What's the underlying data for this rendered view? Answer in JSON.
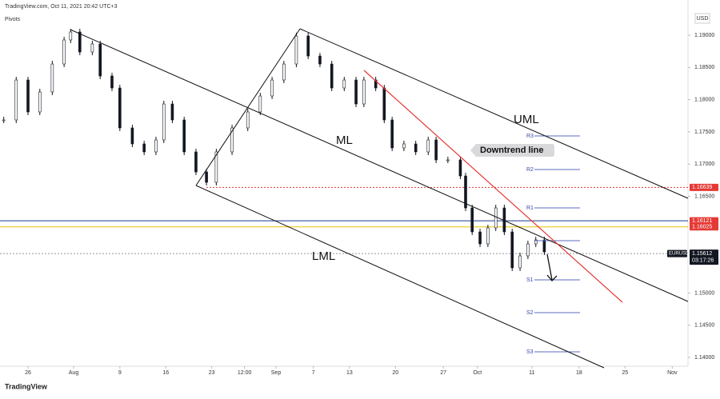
{
  "chart_data": {
    "type": "candlestick",
    "title": "TradingView.com, Oct 11, 2021 20:42 UTC+3",
    "subtitle": "Pivots",
    "currency": "USD",
    "symbol": "EURUSD",
    "countdown": "03:17:26",
    "brand": "TradingView",
    "annotations": [
      "UML",
      "ML",
      "LML",
      "Downtrend line"
    ],
    "x": [
      -3.7,
      -1.8,
      0,
      1.8,
      3.7,
      5.5,
      6.5,
      7.9,
      9.8,
      11,
      12.8,
      14,
      15.9,
      17.7,
      19.5,
      20.7,
      22,
      23.8,
      25.6,
      27.2,
      28.7,
      31.1,
      33.5,
      35.4,
      37.2,
      39,
      40.9,
      42.7,
      44.5,
      46.3,
      48.2,
      50,
      51.2,
      53,
      54.3,
      55.5,
      57.3,
      59.1,
      61,
      62.2,
      64,
      65.9,
      66.7,
      67.7,
      68.9,
      70.1,
      71.3,
      72.6,
      73.8,
      75,
      76.2,
      77.4,
      78.7
    ],
    "values": [
      1.17685,
      1.18305,
      1.17809,
      1.18119,
      1.18553,
      1.18926,
      1.1905,
      1.18739,
      1.18864,
      1.18367,
      1.18181,
      1.17561,
      1.17313,
      1.17189,
      1.17375,
      1.17933,
      1.17685,
      1.17189,
      1.16878,
      1.16717,
      1.17189,
      1.17561,
      1.17809,
      1.18057,
      1.18305,
      1.18553,
      1.18988,
      1.18677,
      1.18553,
      1.18181,
      1.18305,
      1.17933,
      1.18305,
      1.18181,
      1.17685,
      1.17251,
      1.17313,
      1.17189,
      1.17375,
      1.17065,
      1.17065,
      1.16816,
      1.1632,
      1.15948,
      1.15762,
      1.1601,
      1.1632,
      1.15948,
      1.1539,
      1.15576,
      1.15762,
      1.15824,
      1.15638
    ],
    "color": "#131722",
    "xlim": [
      -4.27,
      100.6
    ],
    "ylim": [
      1.13864,
      1.19546
    ],
    "yticks": [
      {
        "value": 1.19,
        "label": "1.19000"
      },
      {
        "value": 1.185,
        "label": "1.18500"
      },
      {
        "value": 1.18,
        "label": "1.18000"
      },
      {
        "value": 1.175,
        "label": "1.17500"
      },
      {
        "value": 1.17,
        "label": "1.17000"
      },
      {
        "value": 1.165,
        "label": "1.16500"
      },
      {
        "value": 1.15,
        "label": "1.15000"
      },
      {
        "value": 1.145,
        "label": "1.14500"
      },
      {
        "value": 1.14,
        "label": "1.14000"
      }
    ],
    "xticks": [
      {
        "value": 0,
        "label": "26"
      },
      {
        "value": 6.95,
        "label": "Aug"
      },
      {
        "value": 14,
        "label": "9"
      },
      {
        "value": 21,
        "label": "16"
      },
      {
        "value": 28,
        "label": "23"
      },
      {
        "value": 33,
        "label": "12:00"
      },
      {
        "value": 37.8,
        "label": "Sep"
      },
      {
        "value": 43.5,
        "label": "7"
      },
      {
        "value": 49,
        "label": "13"
      },
      {
        "value": 56,
        "label": "20"
      },
      {
        "value": 63.3,
        "label": "27"
      },
      {
        "value": 68.5,
        "label": "Oct"
      },
      {
        "value": 76.8,
        "label": "11"
      },
      {
        "value": 84,
        "label": "18"
      },
      {
        "value": 91,
        "label": "25"
      },
      {
        "value": 98.2,
        "label": "Nov"
      }
    ],
    "levels": [
      {
        "value": 1.16639,
        "label": "1.16639",
        "color": "#e53935",
        "style": "dotted"
      },
      {
        "value": 1.16121,
        "label": "1.16121",
        "color": "#1e3a8a",
        "style": "solid"
      },
      {
        "value": 1.16025,
        "label": "1.16025",
        "color": "#e6c200",
        "style": "solid"
      },
      {
        "value": 1.15612,
        "label": "1.15612",
        "color": "#999999",
        "style": "dotted"
      }
    ],
    "pivots": [
      {
        "name": "R3",
        "value": 1.17437
      },
      {
        "name": "R2",
        "value": 1.16916
      },
      {
        "name": "R1",
        "value": 1.1632
      },
      {
        "name": null,
        "value": 1.15811
      },
      {
        "name": "S1",
        "value": 1.15204
      },
      {
        "name": "S2",
        "value": 1.14695
      },
      {
        "name": "S3",
        "value": 1.14087
      }
    ]
  }
}
